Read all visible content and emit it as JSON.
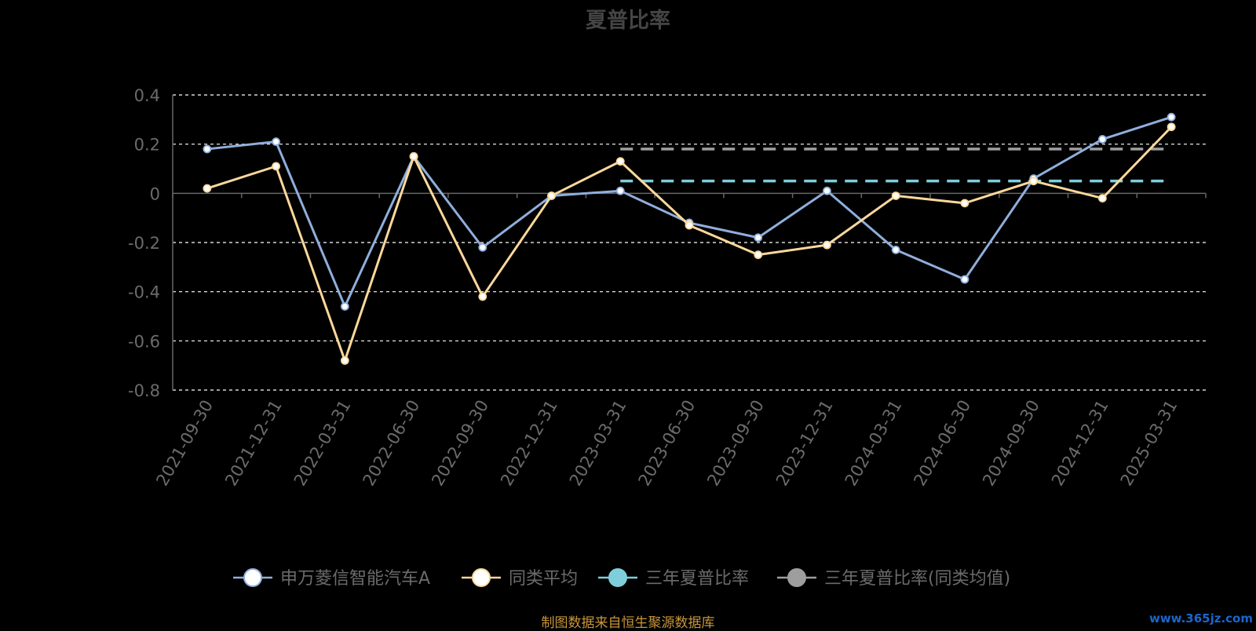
{
  "title": "夏普比率",
  "source": "制图数据来自恒生聚源数据库",
  "watermark": "www.365jz.com",
  "colors": {
    "fund": "#8faedc",
    "peer": "#fcd89b",
    "three_year": "#7ecfdb",
    "three_year_peer": "#9e9e9e",
    "axis": "#666666",
    "grid": "#ffffff",
    "tick_text": "#6b6b6b",
    "legend_text": "#6b6b6b"
  },
  "chart_data": {
    "type": "line",
    "categories": [
      "2021-09-30",
      "2021-12-31",
      "2022-03-31",
      "2022-06-30",
      "2022-09-30",
      "2022-12-31",
      "2023-03-31",
      "2023-06-30",
      "2023-09-30",
      "2023-12-31",
      "2024-03-31",
      "2024-06-30",
      "2024-09-30",
      "2024-12-31",
      "2025-03-31"
    ],
    "ylim": [
      -0.8,
      0.4
    ],
    "yticks": [
      0.4,
      0.2,
      0,
      -0.2,
      -0.4,
      -0.6,
      -0.8
    ],
    "ytick_labels": [
      "0.4",
      "0.2",
      "0",
      "-0.2",
      "-0.4",
      "-0.6",
      "-0.8"
    ],
    "grid": true,
    "legend_position": "bottom",
    "series": [
      {
        "name": "申万菱信智能汽车A",
        "style": "solid-line",
        "values": [
          0.18,
          0.21,
          -0.46,
          0.15,
          -0.22,
          -0.01,
          0.01,
          -0.12,
          -0.18,
          0.01,
          -0.23,
          -0.35,
          0.06,
          0.22,
          0.31
        ]
      },
      {
        "name": "同类平均",
        "style": "solid-line",
        "values": [
          0.02,
          0.11,
          -0.68,
          0.15,
          -0.42,
          -0.01,
          0.13,
          -0.13,
          -0.25,
          -0.21,
          -0.01,
          -0.04,
          0.05,
          -0.02,
          0.27
        ]
      },
      {
        "name": "三年夏普比率",
        "style": "dashed-line",
        "from_category": "2023-03-31",
        "to_category": "2025-03-31",
        "value": 0.05
      },
      {
        "name": "三年夏普比率(同类均值)",
        "style": "dashed-line",
        "from_category": "2023-03-31",
        "to_category": "2025-03-31",
        "value": 0.18
      }
    ]
  }
}
